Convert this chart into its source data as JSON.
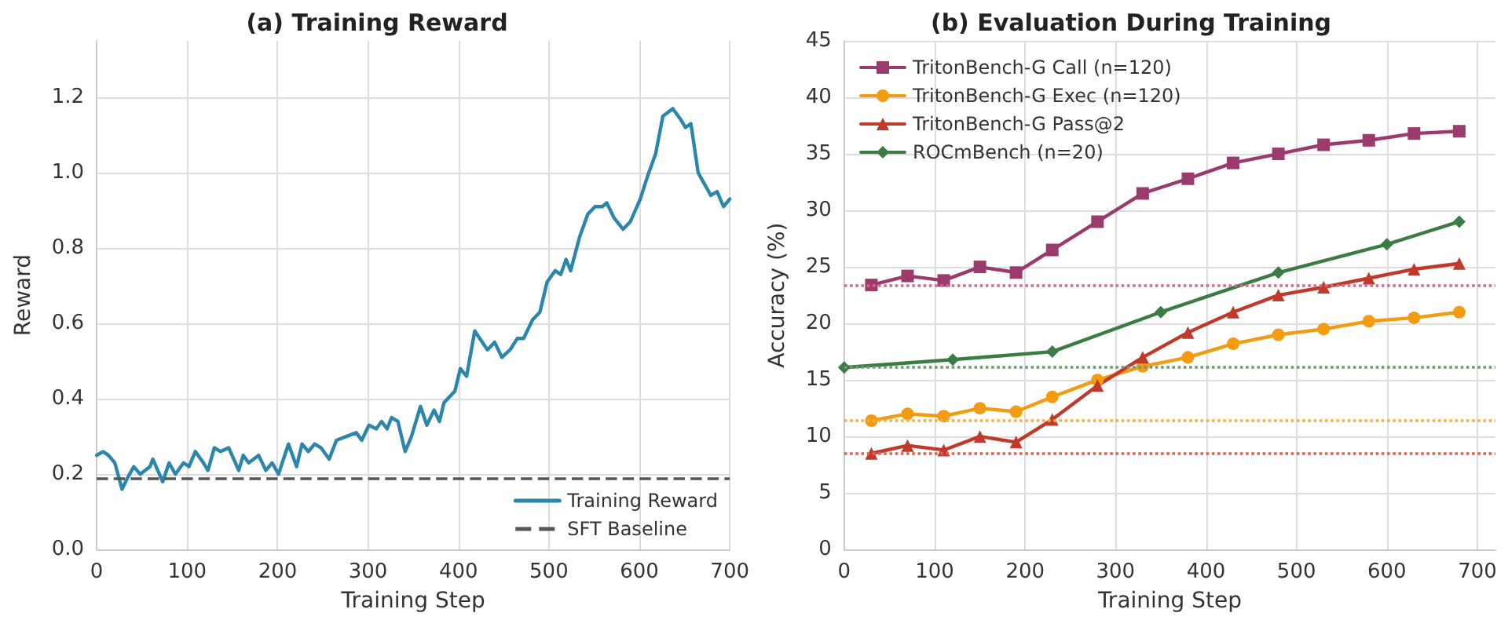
{
  "chart_data": [
    {
      "type": "line",
      "title": "(a) Training Reward",
      "xlabel": "Training Step",
      "ylabel": "Reward",
      "x": [
        0,
        7,
        13,
        20,
        28,
        34,
        41,
        48,
        59,
        62,
        73,
        80,
        87,
        96,
        102,
        109,
        118,
        123,
        130,
        137,
        146,
        157,
        162,
        168,
        179,
        187,
        194,
        201,
        212,
        221,
        227,
        234,
        241,
        248,
        257,
        265,
        276,
        287,
        293,
        301,
        309,
        315,
        321,
        326,
        333,
        341,
        348,
        358,
        365,
        373,
        379,
        384,
        396,
        402,
        409,
        418,
        432,
        440,
        448,
        457,
        465,
        472,
        482,
        490,
        498,
        507,
        513,
        519,
        524,
        534,
        543,
        551,
        559,
        564,
        572,
        582,
        590,
        601,
        609,
        618,
        626,
        637,
        646,
        651,
        657,
        665,
        679,
        686,
        693,
        700
      ],
      "series": [
        {
          "name": "Training Reward",
          "color": "#2a86ab",
          "values": [
            0.25,
            0.26,
            0.25,
            0.23,
            0.16,
            0.19,
            0.22,
            0.2,
            0.22,
            0.24,
            0.18,
            0.23,
            0.2,
            0.23,
            0.22,
            0.26,
            0.23,
            0.21,
            0.27,
            0.26,
            0.27,
            0.21,
            0.25,
            0.23,
            0.25,
            0.21,
            0.23,
            0.2,
            0.28,
            0.22,
            0.28,
            0.26,
            0.28,
            0.27,
            0.24,
            0.29,
            0.3,
            0.31,
            0.29,
            0.33,
            0.32,
            0.34,
            0.32,
            0.35,
            0.34,
            0.26,
            0.3,
            0.38,
            0.33,
            0.37,
            0.34,
            0.39,
            0.42,
            0.48,
            0.46,
            0.58,
            0.53,
            0.55,
            0.51,
            0.53,
            0.56,
            0.56,
            0.61,
            0.63,
            0.71,
            0.74,
            0.73,
            0.77,
            0.74,
            0.83,
            0.89,
            0.91,
            0.91,
            0.92,
            0.88,
            0.85,
            0.87,
            0.93,
            0.99,
            1.05,
            1.15,
            1.17,
            1.14,
            1.12,
            1.13,
            1.0,
            0.94,
            0.95,
            0.91,
            0.93
          ]
        }
      ],
      "ref_lines": [
        {
          "axis": "y",
          "value": 0.19,
          "label": "SFT Baseline",
          "color": "#555555",
          "line_style": "dashed"
        }
      ],
      "xlim": [
        0,
        700
      ],
      "xticks": [
        0,
        100,
        200,
        300,
        400,
        500,
        600,
        700
      ],
      "ylim": [
        0,
        1.35
      ],
      "yticks": [
        {
          "value": 0,
          "label": "0.0"
        },
        {
          "value": 0.2,
          "label": "0.2"
        },
        {
          "value": 0.4,
          "label": "0.4"
        },
        {
          "value": 0.6,
          "label": "0.6"
        },
        {
          "value": 0.8,
          "label": "0.8"
        },
        {
          "value": 1,
          "label": "1.0"
        },
        {
          "value": 1.2,
          "label": "1.2"
        }
      ],
      "grid": true,
      "legend": "bottom right",
      "marker": "none",
      "line_style": "solid"
    },
    {
      "type": "line",
      "title": "(b) Evaluation During Training",
      "xlabel": "Training Step",
      "ylabel": "Accuracy (%)",
      "x": [
        30,
        70,
        110,
        150,
        190,
        230,
        280,
        330,
        380,
        430,
        480,
        530,
        580,
        630,
        680
      ],
      "series": [
        {
          "name": "TritonBench-G Call (n=120)",
          "color": "#9b3a6c",
          "marker": "square",
          "values": [
            23.4,
            24.2,
            23.8,
            25,
            24.5,
            26.5,
            29,
            31.5,
            32.8,
            34.2,
            35,
            35.8,
            36.2,
            36.8,
            37
          ]
        },
        {
          "name": "TritonBench-G Exec (n=120)",
          "color": "#f39c12",
          "marker": "circle",
          "values": [
            11.4,
            12,
            11.8,
            12.5,
            12.2,
            13.5,
            15,
            16.2,
            17,
            18.2,
            19,
            19.5,
            20.2,
            20.5,
            21
          ]
        },
        {
          "name": "TritonBench-G Pass@2",
          "color": "#c0392b",
          "marker": "triangle",
          "values": [
            8.5,
            9.2,
            8.8,
            10,
            9.5,
            11.5,
            14.5,
            17,
            19.2,
            21,
            22.5,
            23.2,
            24,
            24.8,
            25.3
          ]
        },
        {
          "name": "ROCmBench (n=20)",
          "color": "#3a7d44",
          "marker": "diamond",
          "x": [
            0,
            120,
            230,
            350,
            480,
            600,
            680
          ],
          "values": [
            16.1,
            16.8,
            17.5,
            21,
            24.5,
            27,
            29
          ]
        }
      ],
      "ref_lines": [
        {
          "axis": "y",
          "value": 23.4,
          "color": "#d46a8a",
          "line_style": "dotted"
        },
        {
          "axis": "y",
          "value": 16.1,
          "color": "#6f9a6f",
          "line_style": "dotted"
        },
        {
          "axis": "y",
          "value": 11.4,
          "color": "#f5b041",
          "line_style": "dotted"
        },
        {
          "axis": "y",
          "value": 8.5,
          "color": "#e06050",
          "line_style": "dotted"
        }
      ],
      "xlim": [
        0,
        720
      ],
      "xticks": [
        0,
        100,
        200,
        300,
        400,
        500,
        600,
        700
      ],
      "ylim": [
        0,
        45
      ],
      "yticks": [
        0,
        5,
        10,
        15,
        20,
        25,
        30,
        35,
        40,
        45
      ],
      "grid": true,
      "legend": "top left",
      "line_style": "solid"
    }
  ]
}
